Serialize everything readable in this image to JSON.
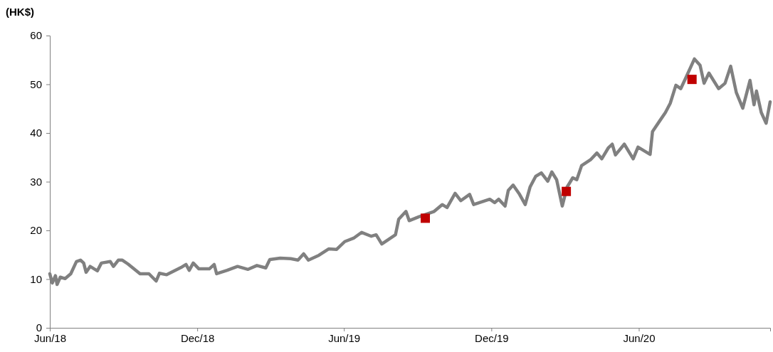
{
  "chart_data": {
    "type": "line",
    "ylabel": "(HK$)",
    "xlim": [
      "2018-06-01",
      "2020-11-11"
    ],
    "xticks": [
      {
        "value": "2018-06-01",
        "label": "Jun/18"
      },
      {
        "value": "2018-12-01",
        "label": "Dec/18"
      },
      {
        "value": "2019-06-01",
        "label": "Jun/19"
      },
      {
        "value": "2019-12-01",
        "label": "Dec/19"
      },
      {
        "value": "2020-06-01",
        "label": "Jun/20"
      }
    ],
    "ylim": [
      0,
      60
    ],
    "yticks": [
      0,
      10,
      20,
      30,
      40,
      50,
      60
    ],
    "grid": false,
    "series": [
      {
        "color": "#808080",
        "marker": "none",
        "x": [
          "2018-06-01",
          "2018-06-04",
          "2018-06-08",
          "2018-06-10",
          "2018-06-14",
          "2018-06-20",
          "2018-06-27",
          "2018-07-04",
          "2018-07-09",
          "2018-07-13",
          "2018-07-16",
          "2018-07-21",
          "2018-07-30",
          "2018-08-04",
          "2018-08-15",
          "2018-08-19",
          "2018-08-25",
          "2018-08-30",
          "2018-09-06",
          "2018-09-21",
          "2018-10-02",
          "2018-10-11",
          "2018-10-15",
          "2018-10-24",
          "2018-11-11",
          "2018-11-17",
          "2018-11-21",
          "2018-11-26",
          "2018-12-03",
          "2018-12-16",
          "2018-12-22",
          "2018-12-25",
          "2019-01-07",
          "2019-01-20",
          "2019-02-02",
          "2019-02-13",
          "2019-02-24",
          "2019-03-01",
          "2019-03-14",
          "2019-03-27",
          "2019-04-05",
          "2019-04-12",
          "2019-04-18",
          "2019-05-01",
          "2019-05-13",
          "2019-05-23",
          "2019-06-02",
          "2019-06-13",
          "2019-06-23",
          "2019-07-05",
          "2019-07-11",
          "2019-07-18",
          "2019-08-04",
          "2019-08-08",
          "2019-08-17",
          "2019-08-21",
          "2019-09-02",
          "2019-09-21",
          "2019-10-01",
          "2019-10-07",
          "2019-10-17",
          "2019-10-24",
          "2019-11-04",
          "2019-11-09",
          "2019-11-29",
          "2019-12-05",
          "2019-12-10",
          "2019-12-18",
          "2019-12-22",
          "2019-12-28",
          "2020-01-05",
          "2020-01-12",
          "2020-01-18",
          "2020-01-25",
          "2020-02-01",
          "2020-02-09",
          "2020-02-14",
          "2020-02-20",
          "2020-02-27",
          "2020-03-04",
          "2020-03-11",
          "2020-03-16",
          "2020-03-22",
          "2020-04-02",
          "2020-04-10",
          "2020-04-16",
          "2020-04-24",
          "2020-04-29",
          "2020-05-03",
          "2020-05-14",
          "2020-05-25",
          "2020-05-31",
          "2020-06-15",
          "2020-06-18",
          "2020-06-27",
          "2020-07-04",
          "2020-07-10",
          "2020-07-17",
          "2020-07-23",
          "2020-07-29",
          "2020-08-09",
          "2020-08-16",
          "2020-08-21",
          "2020-08-27",
          "2020-09-08",
          "2020-09-16",
          "2020-09-23",
          "2020-09-30",
          "2020-10-08",
          "2020-10-17",
          "2020-10-22",
          "2020-10-25",
          "2020-10-31",
          "2020-11-06",
          "2020-11-11"
        ],
        "values": [
          11.1,
          9.2,
          10.7,
          8.9,
          10.4,
          10.1,
          11.1,
          13.6,
          13.9,
          13.3,
          11.4,
          12.6,
          11.7,
          13.3,
          13.6,
          12.6,
          13.9,
          13.9,
          13.1,
          11.1,
          11.1,
          9.6,
          11.2,
          10.9,
          12.4,
          13.0,
          11.8,
          13.3,
          12.1,
          12.1,
          13.0,
          11.1,
          11.8,
          12.6,
          12.0,
          12.8,
          12.3,
          14.0,
          14.3,
          14.2,
          13.9,
          15.2,
          13.9,
          14.9,
          16.2,
          16.1,
          17.7,
          18.4,
          19.6,
          18.8,
          19.1,
          17.2,
          19.1,
          22.3,
          23.9,
          22.0,
          22.8,
          23.9,
          25.3,
          24.7,
          27.6,
          26.1,
          27.4,
          25.3,
          26.4,
          25.7,
          26.4,
          25.0,
          28.2,
          29.3,
          27.4,
          25.3,
          28.9,
          31.1,
          31.8,
          30.1,
          32.0,
          30.4,
          25.0,
          28.9,
          30.8,
          30.4,
          33.3,
          34.5,
          35.9,
          34.7,
          36.9,
          37.7,
          35.5,
          37.7,
          34.7,
          37.1,
          35.6,
          40.3,
          42.5,
          44.2,
          46.1,
          49.8,
          49.1,
          51.2,
          55.2,
          53.9,
          50.2,
          52.3,
          49.1,
          50.2,
          53.7,
          48.3,
          45.1,
          50.8,
          45.8,
          48.6,
          44.2,
          42.0,
          46.4
        ]
      },
      {
        "type": "scatter",
        "color": "#c00000",
        "marker": "square",
        "x": [
          "2019-09-10",
          "2020-03-03",
          "2020-08-06"
        ],
        "values": [
          22.5,
          28,
          51
        ]
      }
    ]
  }
}
